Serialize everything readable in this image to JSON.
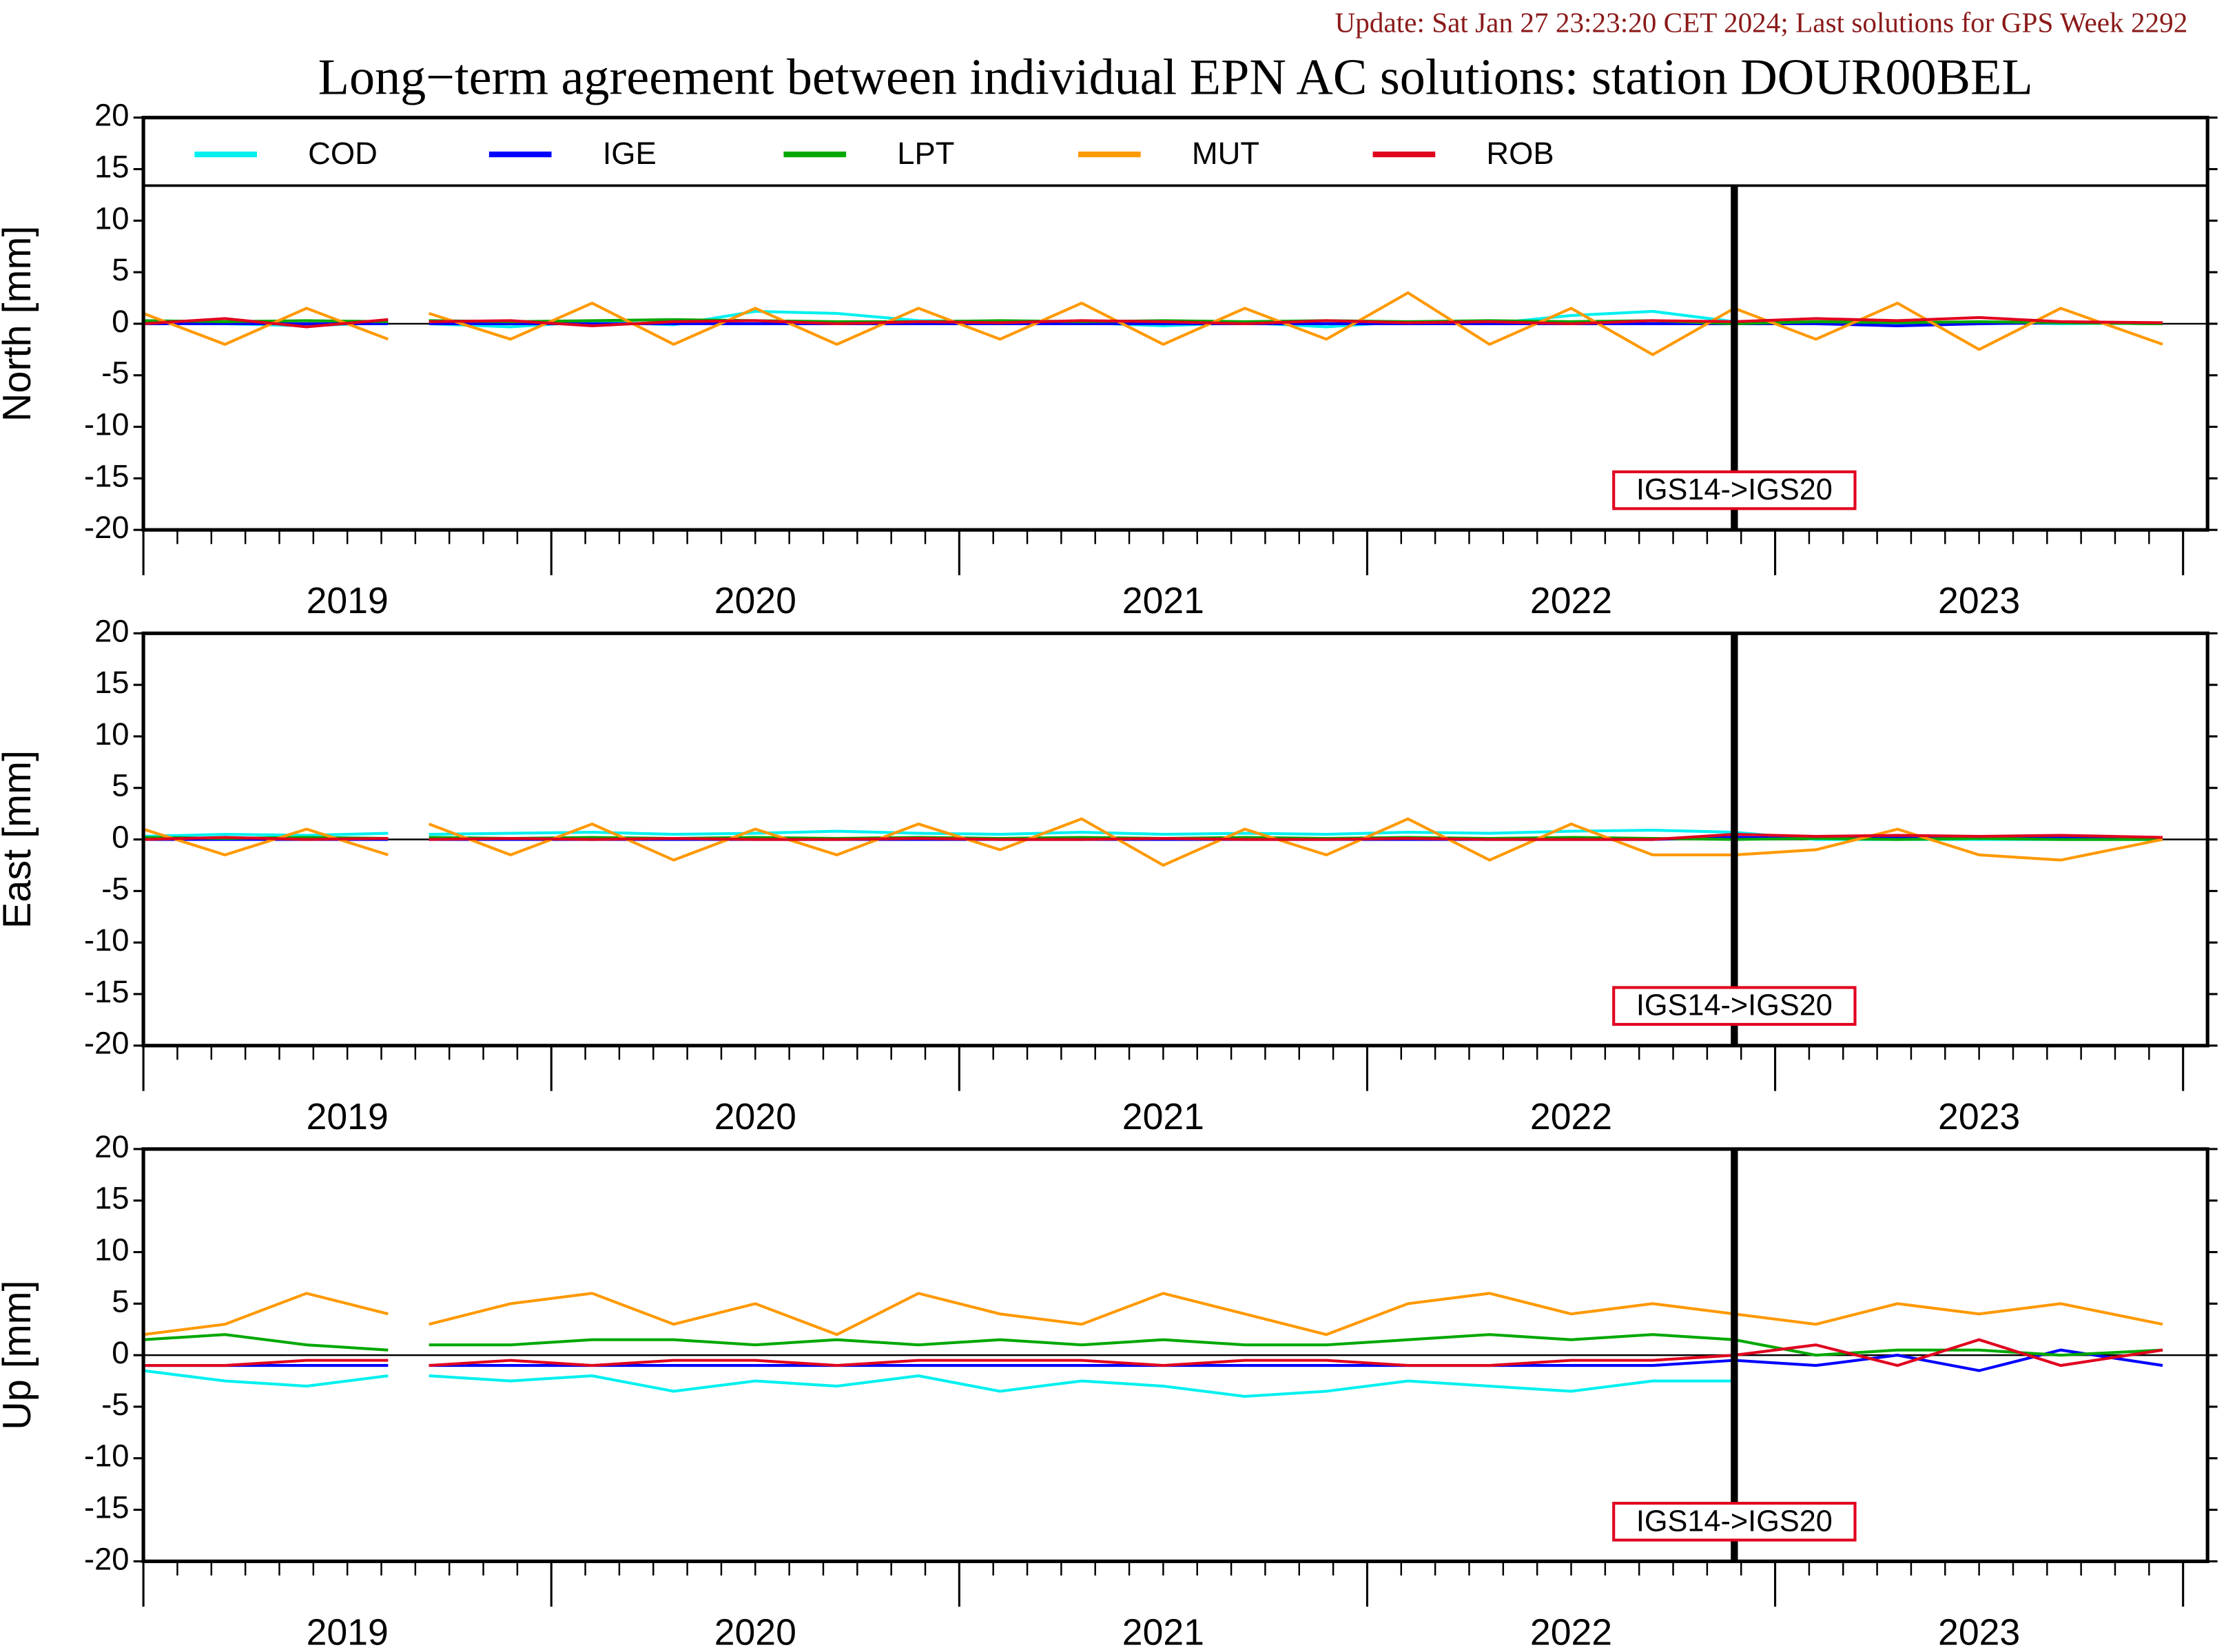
{
  "update": "Update: Sat Jan 27 23:23:20 CET 2024; Last solutions for GPS Week 2292",
  "title": "Long−term agreement between individual EPN AC solutions: station DOUR00BEL",
  "chart_data": [
    {
      "type": "line",
      "ylabel": "North [mm]",
      "legend": "top",
      "x": [
        2019.0,
        2019.2,
        2019.4,
        2019.6,
        2019.66,
        2019.7,
        2019.9,
        2020.1,
        2020.3,
        2020.5,
        2020.7,
        2020.9,
        2021.1,
        2021.3,
        2021.5,
        2021.7,
        2021.9,
        2022.1,
        2022.3,
        2022.5,
        2022.7,
        2022.9,
        2023.1,
        2023.3,
        2023.5,
        2023.7,
        2023.95
      ],
      "xlim": [
        2019.0,
        2024.06
      ],
      "xticks": [
        2019,
        2020,
        2021,
        2022,
        2023,
        2024
      ],
      "xlabels": [
        {
          "value": 2019.5,
          "label": "2019"
        },
        {
          "value": 2020.5,
          "label": "2020"
        },
        {
          "value": 2021.5,
          "label": "2021"
        },
        {
          "value": 2022.5,
          "label": "2022"
        },
        {
          "value": 2023.5,
          "label": "2023"
        }
      ],
      "ylim": [
        -20,
        20
      ],
      "yticks": [
        -20,
        -15,
        -10,
        -5,
        0,
        5,
        10,
        15,
        20
      ],
      "event": {
        "x": 2022.9,
        "label": "IGS14->IGS20"
      },
      "series": [
        {
          "name": "COD",
          "color": "#00f0f0",
          "values": [
            0.3,
            0,
            -0.2,
            0.1,
            null,
            0,
            -0.3,
            0.2,
            -0.1,
            1.2,
            1,
            0.3,
            0.2,
            0.1,
            -0.2,
            0.1,
            -0.3,
            0.2,
            0,
            0.8,
            1.2,
            0.2,
            0.1,
            0,
            0.2,
            0,
            0.1
          ]
        },
        {
          "name": "IGE",
          "color": "#0000ff",
          "values": [
            0,
            0,
            0,
            0,
            null,
            0,
            0,
            0,
            0,
            0,
            0,
            0,
            0,
            0,
            0,
            0,
            0,
            0,
            0,
            0,
            0,
            0,
            0,
            -0.2,
            0,
            0.1,
            0
          ]
        },
        {
          "name": "LPT",
          "color": "#00a800",
          "values": [
            0.3,
            0.2,
            0.3,
            0.2,
            null,
            0.3,
            0.2,
            0.3,
            0.4,
            0.3,
            0.2,
            0.2,
            0.3,
            0.2,
            0.3,
            0.2,
            0.3,
            0.2,
            0.3,
            0.2,
            0.3,
            0,
            0.2,
            0.1,
            0.2,
            0.1,
            0
          ]
        },
        {
          "name": "MUT",
          "color": "#ff9900",
          "values": [
            1,
            -2,
            1.5,
            -1.5,
            null,
            1,
            -1.5,
            2,
            -2,
            1.5,
            -2,
            1.5,
            -1.5,
            2,
            -2,
            1.5,
            -1.5,
            3,
            -2,
            1.5,
            -3,
            1.5,
            -1.5,
            2,
            -2.5,
            1.5,
            -2
          ]
        },
        {
          "name": "ROB",
          "color": "#e0001e",
          "values": [
            0,
            0.5,
            -0.3,
            0.4,
            null,
            0.2,
            0.3,
            -0.2,
            0.2,
            0.3,
            0,
            0.2,
            0.1,
            0.3,
            0.2,
            0,
            0.3,
            0.1,
            0.2,
            0,
            0.3,
            0.2,
            0.5,
            0.3,
            0.6,
            0.2,
            0.1
          ]
        }
      ]
    },
    {
      "type": "line",
      "ylabel": "East [mm]",
      "x": [
        2019.0,
        2019.2,
        2019.4,
        2019.6,
        2019.66,
        2019.7,
        2019.9,
        2020.1,
        2020.3,
        2020.5,
        2020.7,
        2020.9,
        2021.1,
        2021.3,
        2021.5,
        2021.7,
        2021.9,
        2022.1,
        2022.3,
        2022.5,
        2022.7,
        2022.9,
        2023.1,
        2023.3,
        2023.5,
        2023.7,
        2023.95
      ],
      "xlim": [
        2019.0,
        2024.06
      ],
      "xticks": [
        2019,
        2020,
        2021,
        2022,
        2023,
        2024
      ],
      "xlabels": [
        {
          "value": 2019.5,
          "label": "2019"
        },
        {
          "value": 2020.5,
          "label": "2020"
        },
        {
          "value": 2021.5,
          "label": "2021"
        },
        {
          "value": 2022.5,
          "label": "2022"
        },
        {
          "value": 2023.5,
          "label": "2023"
        }
      ],
      "ylim": [
        -20,
        20
      ],
      "yticks": [
        -20,
        -15,
        -10,
        -5,
        0,
        5,
        10,
        15,
        20
      ],
      "event": {
        "x": 2022.9,
        "label": "IGS14->IGS20"
      },
      "series": [
        {
          "name": "COD",
          "color": "#00f0f0",
          "values": [
            0.3,
            0.5,
            0.4,
            0.6,
            null,
            0.5,
            0.6,
            0.7,
            0.5,
            0.6,
            0.8,
            0.6,
            0.5,
            0.7,
            0.5,
            0.6,
            0.5,
            0.7,
            0.6,
            0.8,
            0.9,
            0.7,
            0,
            0,
            0,
            0,
            0
          ]
        },
        {
          "name": "IGE",
          "color": "#0000ff",
          "values": [
            0,
            0,
            0,
            0,
            null,
            0,
            0,
            0,
            0,
            0,
            0,
            0,
            0,
            0,
            0,
            0,
            0,
            0,
            0,
            0,
            0,
            0.2,
            0.1,
            0.2,
            0.1,
            0.2,
            0
          ]
        },
        {
          "name": "LPT",
          "color": "#00a800",
          "values": [
            0.2,
            0.1,
            0.2,
            0.1,
            null,
            0.2,
            0.1,
            0.2,
            0.1,
            0.2,
            0.1,
            0.2,
            0.1,
            0.2,
            0.1,
            0.2,
            0.1,
            0.2,
            0.1,
            0.2,
            0.1,
            0,
            0.1,
            0,
            0.1,
            0,
            0
          ]
        },
        {
          "name": "MUT",
          "color": "#ff9900",
          "values": [
            1,
            -1.5,
            1,
            -1.5,
            null,
            1.5,
            -1.5,
            1.5,
            -2,
            1,
            -1.5,
            1.5,
            -1,
            2,
            -2.5,
            1,
            -1.5,
            2,
            -2,
            1.5,
            -1.5,
            -1.5,
            -1,
            1,
            -1.5,
            -2,
            0
          ]
        },
        {
          "name": "ROB",
          "color": "#e0001e",
          "values": [
            0,
            0.2,
            0,
            0.1,
            null,
            0,
            0.1,
            0,
            0.1,
            0,
            0,
            0.1,
            0,
            0,
            0.1,
            0,
            0,
            0.1,
            0,
            0,
            0,
            0.5,
            0.3,
            0.4,
            0.3,
            0.4,
            0.2
          ]
        }
      ]
    },
    {
      "type": "line",
      "ylabel": "Up [mm]",
      "x": [
        2019.0,
        2019.2,
        2019.4,
        2019.6,
        2019.66,
        2019.7,
        2019.9,
        2020.1,
        2020.3,
        2020.5,
        2020.7,
        2020.9,
        2021.1,
        2021.3,
        2021.5,
        2021.7,
        2021.9,
        2022.1,
        2022.3,
        2022.5,
        2022.7,
        2022.9,
        2023.1,
        2023.3,
        2023.5,
        2023.7,
        2023.95
      ],
      "xlim": [
        2019.0,
        2024.06
      ],
      "xticks": [
        2019,
        2020,
        2021,
        2022,
        2023,
        2024
      ],
      "xlabels": [
        {
          "value": 2019.5,
          "label": "2019"
        },
        {
          "value": 2020.5,
          "label": "2020"
        },
        {
          "value": 2021.5,
          "label": "2021"
        },
        {
          "value": 2022.5,
          "label": "2022"
        },
        {
          "value": 2023.5,
          "label": "2023"
        }
      ],
      "ylim": [
        -20,
        20
      ],
      "yticks": [
        -20,
        -15,
        -10,
        -5,
        0,
        5,
        10,
        15,
        20
      ],
      "event": {
        "x": 2022.9,
        "label": "IGS14->IGS20"
      },
      "series": [
        {
          "name": "COD",
          "color": "#00f0f0",
          "values": [
            -1.5,
            -2.5,
            -3,
            -2,
            null,
            -2,
            -2.5,
            -2,
            -3.5,
            -2.5,
            -3,
            -2,
            -3.5,
            -2.5,
            -3,
            -4,
            -3.5,
            -2.5,
            -3,
            -3.5,
            -2.5,
            -2.5,
            null,
            null,
            null,
            null,
            null
          ]
        },
        {
          "name": "IGE",
          "color": "#0000ff",
          "values": [
            -1,
            -1,
            -1,
            -1,
            null,
            -1,
            -1,
            -1,
            -1,
            -1,
            -1,
            -1,
            -1,
            -1,
            -1,
            -1,
            -1,
            -1,
            -1,
            -1,
            -1,
            -0.5,
            -1,
            0,
            -1.5,
            0.5,
            -1
          ]
        },
        {
          "name": "LPT",
          "color": "#00a800",
          "values": [
            1.5,
            2,
            1,
            0.5,
            null,
            1,
            1,
            1.5,
            1.5,
            1,
            1.5,
            1,
            1.5,
            1,
            1.5,
            1,
            1,
            1.5,
            2,
            1.5,
            2,
            1.5,
            0,
            0.5,
            0.5,
            0,
            0.5
          ]
        },
        {
          "name": "MUT",
          "color": "#ff9900",
          "values": [
            2,
            3,
            6,
            4,
            null,
            3,
            5,
            6,
            3,
            5,
            2,
            6,
            4,
            3,
            6,
            4,
            2,
            5,
            6,
            4,
            5,
            4,
            3,
            5,
            4,
            5,
            3
          ]
        },
        {
          "name": "ROB",
          "color": "#e0001e",
          "values": [
            -1,
            -1,
            -0.5,
            -0.5,
            null,
            -1,
            -0.5,
            -1,
            -0.5,
            -0.5,
            -1,
            -0.5,
            -0.5,
            -0.5,
            -1,
            -0.5,
            -0.5,
            -1,
            -1,
            -0.5,
            -0.5,
            0,
            1,
            -1,
            1.5,
            -1,
            0.5
          ]
        }
      ]
    }
  ]
}
